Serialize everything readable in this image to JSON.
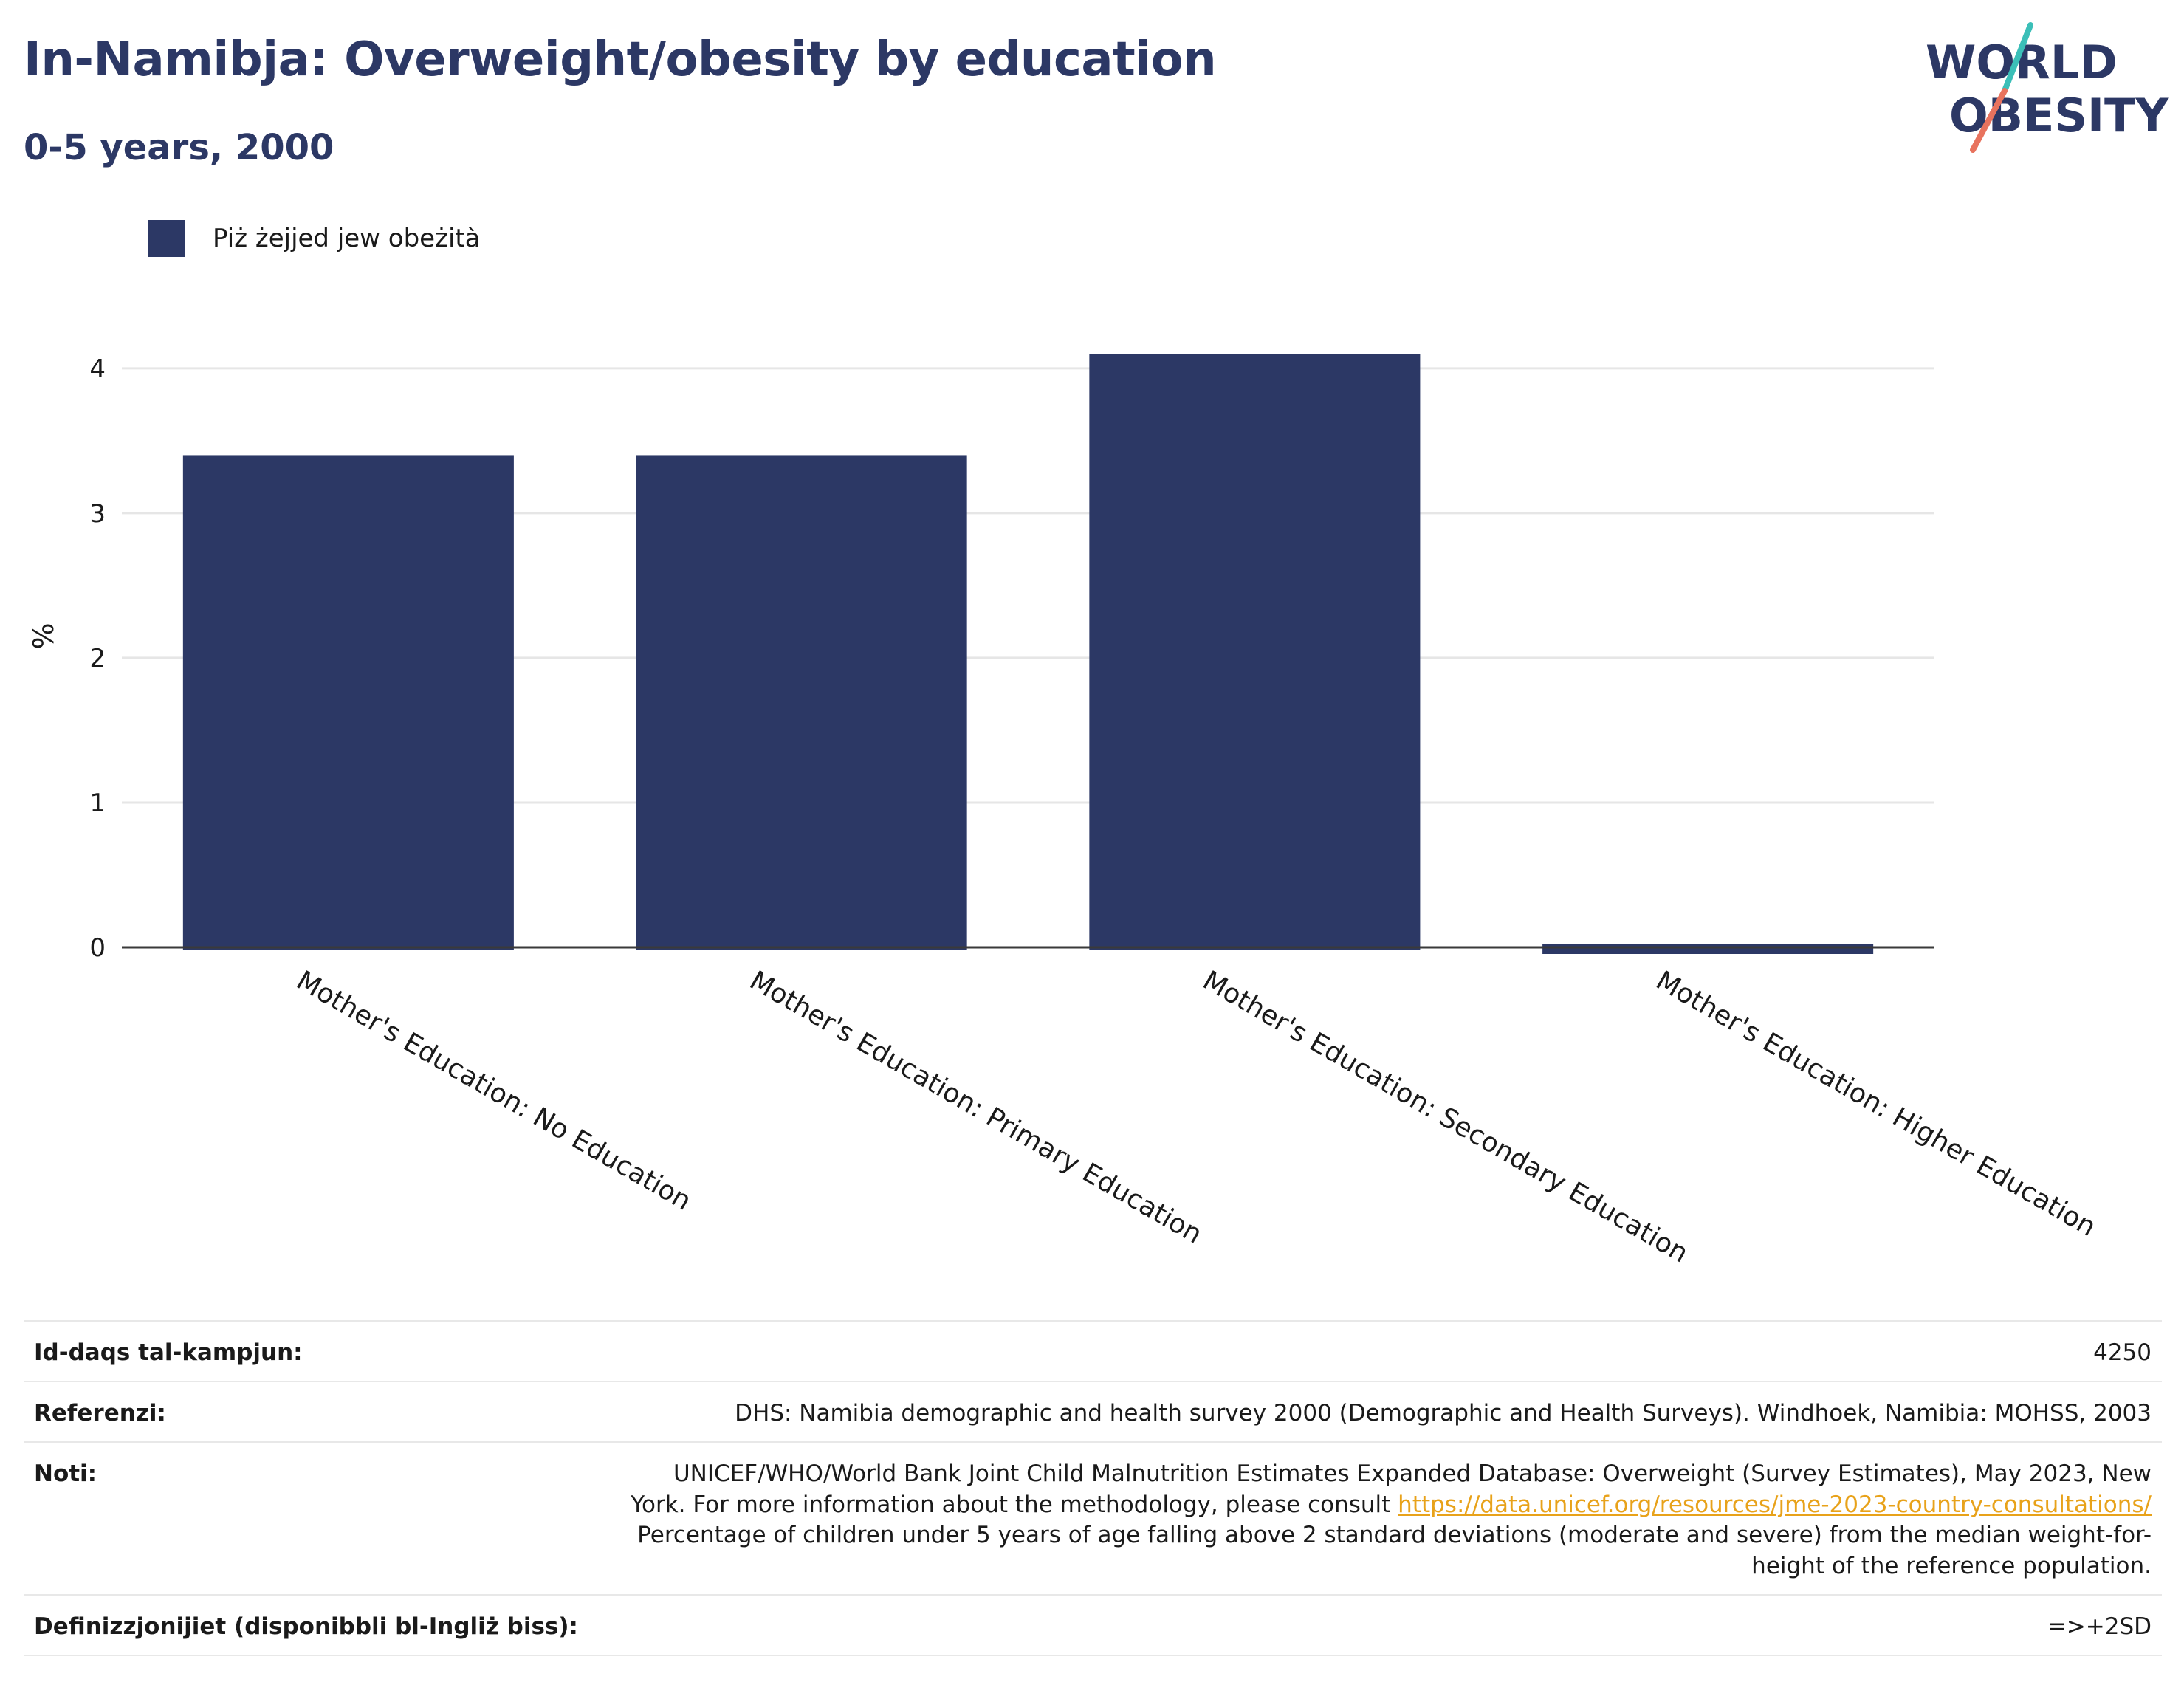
{
  "header": {
    "title": "In-Namibja: Overweight/obesity by education",
    "subtitle": "0-5 years, 2000"
  },
  "logo": {
    "line1": "WORLD",
    "line2": "OBESITY",
    "colors": {
      "text": "#2c3865",
      "slash_teal": "#3bbfb8",
      "slash_coral": "#e8735e"
    }
  },
  "legend": {
    "label": "Piż żejjed jew obeżità",
    "color": "#2c3865"
  },
  "chart_data": {
    "type": "bar",
    "title": "In-Namibja: Overweight/obesity by education",
    "subtitle": "0-5 years, 2000",
    "categories": [
      "Mother's Education: No Education",
      "Mother's Education: Primary Education",
      "Mother's Education: Secondary Education",
      "Mother's Education: Higher Education"
    ],
    "series": [
      {
        "name": "Piż żejjed jew obeżità",
        "values": [
          3.4,
          3.4,
          4.1,
          0.0
        ],
        "color": "#2c3865"
      }
    ],
    "xlabel": "",
    "ylabel": "%",
    "ylim": [
      0,
      4.3
    ],
    "yticks": [
      0,
      1,
      2,
      3,
      4
    ],
    "grid": true,
    "legend_position": "top-left"
  },
  "info": {
    "sample_size": {
      "label": "Id-daqs tal-kampjun:",
      "value": "4250"
    },
    "references": {
      "label": "Referenzi:",
      "value": "DHS: Namibia demographic and health survey 2000 (Demographic and Health Surveys). Windhoek, Namibia: MOHSS, 2003"
    },
    "notes": {
      "label": "Noti:",
      "line1": "UNICEF/WHO/World Bank Joint Child Malnutrition Estimates Expanded Database: Overweight (Survey Estimates), May 2023, New",
      "line2_prefix": "York. For more information about the methodology, please consult ",
      "link": "https://data.unicef.org/resources/jme-2023-country-consultations/",
      "line3": "Percentage of children under 5 years of age falling above 2 standard deviations (moderate and severe) from the median weight-for-",
      "line4": "height of the reference population."
    },
    "definitions": {
      "label": "Definizzjonijiet (disponibbli bl-Ingliż biss):",
      "value": "=>+2SD"
    }
  }
}
